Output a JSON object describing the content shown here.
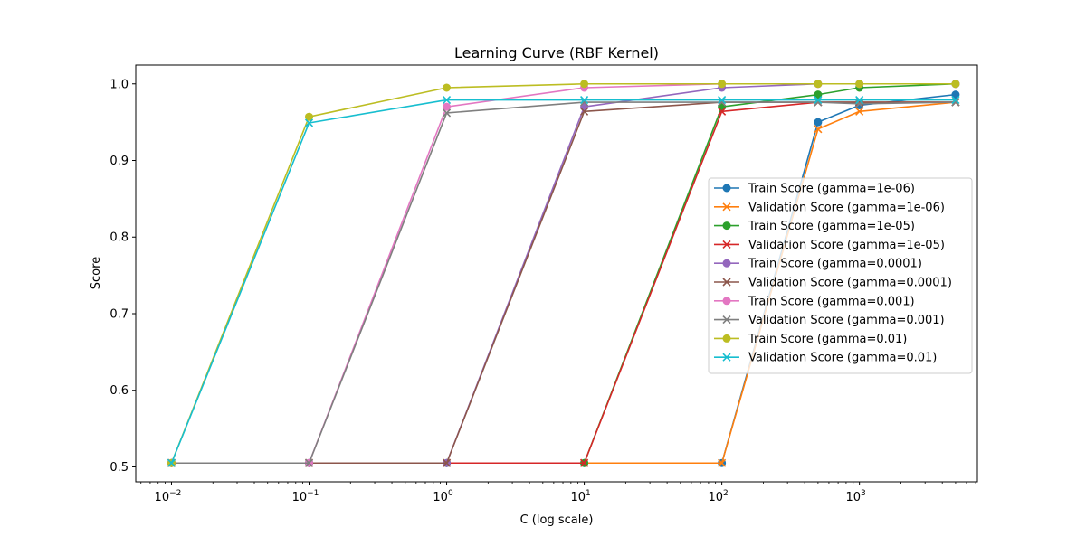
{
  "chart_data": {
    "type": "line",
    "title": "Learning Curve (RBF Kernel)",
    "xlabel": "C (log scale)",
    "ylabel": "Score",
    "xscale": "log",
    "xlim": [
      0.0055,
      7200
    ],
    "ylim": [
      0.4805,
      1.0245
    ],
    "x_ticks": [
      {
        "value": 0.01,
        "base": "10",
        "exp": "−2"
      },
      {
        "value": 0.1,
        "base": "10",
        "exp": "−1"
      },
      {
        "value": 1,
        "base": "10",
        "exp": "0"
      },
      {
        "value": 10,
        "base": "10",
        "exp": "1"
      },
      {
        "value": 100,
        "base": "10",
        "exp": "2"
      },
      {
        "value": 1000,
        "base": "10",
        "exp": "3"
      }
    ],
    "y_ticks": [
      {
        "value": 0.5,
        "label": "0.5"
      },
      {
        "value": 0.6,
        "label": "0.6"
      },
      {
        "value": 0.7,
        "label": "0.7"
      },
      {
        "value": 0.8,
        "label": "0.8"
      },
      {
        "value": 0.9,
        "label": "0.9"
      },
      {
        "value": 1.0,
        "label": "1.0"
      }
    ],
    "grid": false,
    "legend_position": "center-right",
    "x": [
      0.01,
      0.1,
      1,
      10,
      100,
      500,
      1000,
      5000
    ],
    "series": [
      {
        "name": "Train Score (gamma=1e-06)",
        "color": "#1f77b4",
        "marker": "circle",
        "values": [
          0.505,
          0.505,
          0.505,
          0.505,
          0.505,
          0.95,
          0.972,
          0.986
        ]
      },
      {
        "name": "Validation Score (gamma=1e-06)",
        "color": "#ff7f0e",
        "marker": "x",
        "values": [
          0.505,
          0.505,
          0.505,
          0.505,
          0.505,
          0.941,
          0.964,
          0.976
        ]
      },
      {
        "name": "Train Score (gamma=1e-05)",
        "color": "#2ca02c",
        "marker": "circle",
        "values": [
          0.505,
          0.505,
          0.505,
          0.505,
          0.97,
          0.986,
          0.995,
          1.0
        ]
      },
      {
        "name": "Validation Score (gamma=1e-05)",
        "color": "#d62728",
        "marker": "x",
        "values": [
          0.505,
          0.505,
          0.505,
          0.505,
          0.964,
          0.976,
          0.976,
          0.976
        ]
      },
      {
        "name": "Train Score (gamma=0.0001)",
        "color": "#9467bd",
        "marker": "circle",
        "values": [
          0.505,
          0.505,
          0.505,
          0.97,
          0.995,
          1.0,
          1.0,
          1.0
        ]
      },
      {
        "name": "Validation Score (gamma=0.0001)",
        "color": "#8c564b",
        "marker": "x",
        "values": [
          0.505,
          0.505,
          0.505,
          0.964,
          0.976,
          0.976,
          0.976,
          0.976
        ]
      },
      {
        "name": "Train Score (gamma=0.001)",
        "color": "#e377c2",
        "marker": "circle",
        "values": [
          0.505,
          0.505,
          0.97,
          0.995,
          1.0,
          1.0,
          1.0,
          1.0
        ]
      },
      {
        "name": "Validation Score (gamma=0.001)",
        "color": "#7f7f7f",
        "marker": "x",
        "values": [
          0.505,
          0.505,
          0.962,
          0.976,
          0.976,
          0.976,
          0.974,
          0.976
        ]
      },
      {
        "name": "Train Score (gamma=0.01)",
        "color": "#bcbd22",
        "marker": "circle",
        "values": [
          0.505,
          0.957,
          0.995,
          1.0,
          1.0,
          1.0,
          1.0,
          1.0
        ]
      },
      {
        "name": "Validation Score (gamma=0.01)",
        "color": "#17becf",
        "marker": "x",
        "values": [
          0.505,
          0.949,
          0.979,
          0.979,
          0.979,
          0.979,
          0.979,
          0.979
        ]
      }
    ]
  }
}
